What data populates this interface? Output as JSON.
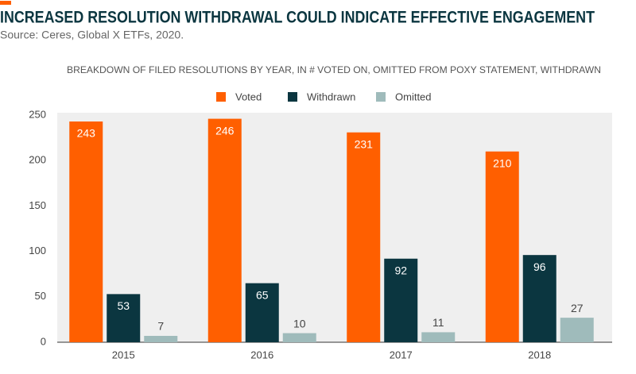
{
  "chart_data": {
    "type": "bar",
    "title": "INCREASED RESOLUTION WITHDRAWAL COULD INDICATE EFFECTIVE ENGAGEMENT",
    "subtitle": "Source: Ceres, Global X ETFs, 2020.",
    "chart_title": "BREAKDOWN OF FILED RESOLUTIONS BY YEAR, IN # VOTED ON, OMITTED FROM POXY STATEMENT, WITHDRAWN",
    "categories": [
      "2015",
      "2016",
      "2017",
      "2018"
    ],
    "series": [
      {
        "name": "Voted",
        "color": "#ff5f00",
        "values": [
          243,
          246,
          231,
          210
        ]
      },
      {
        "name": "Withdrawn",
        "color": "#0b3640",
        "values": [
          53,
          65,
          92,
          96
        ]
      },
      {
        "name": "Omitted",
        "color": "#9fbbbb",
        "values": [
          7,
          10,
          11,
          27
        ]
      }
    ],
    "ylim": [
      0,
      250
    ],
    "yticks": [
      0,
      50,
      100,
      150,
      200,
      250
    ],
    "grid": false
  }
}
